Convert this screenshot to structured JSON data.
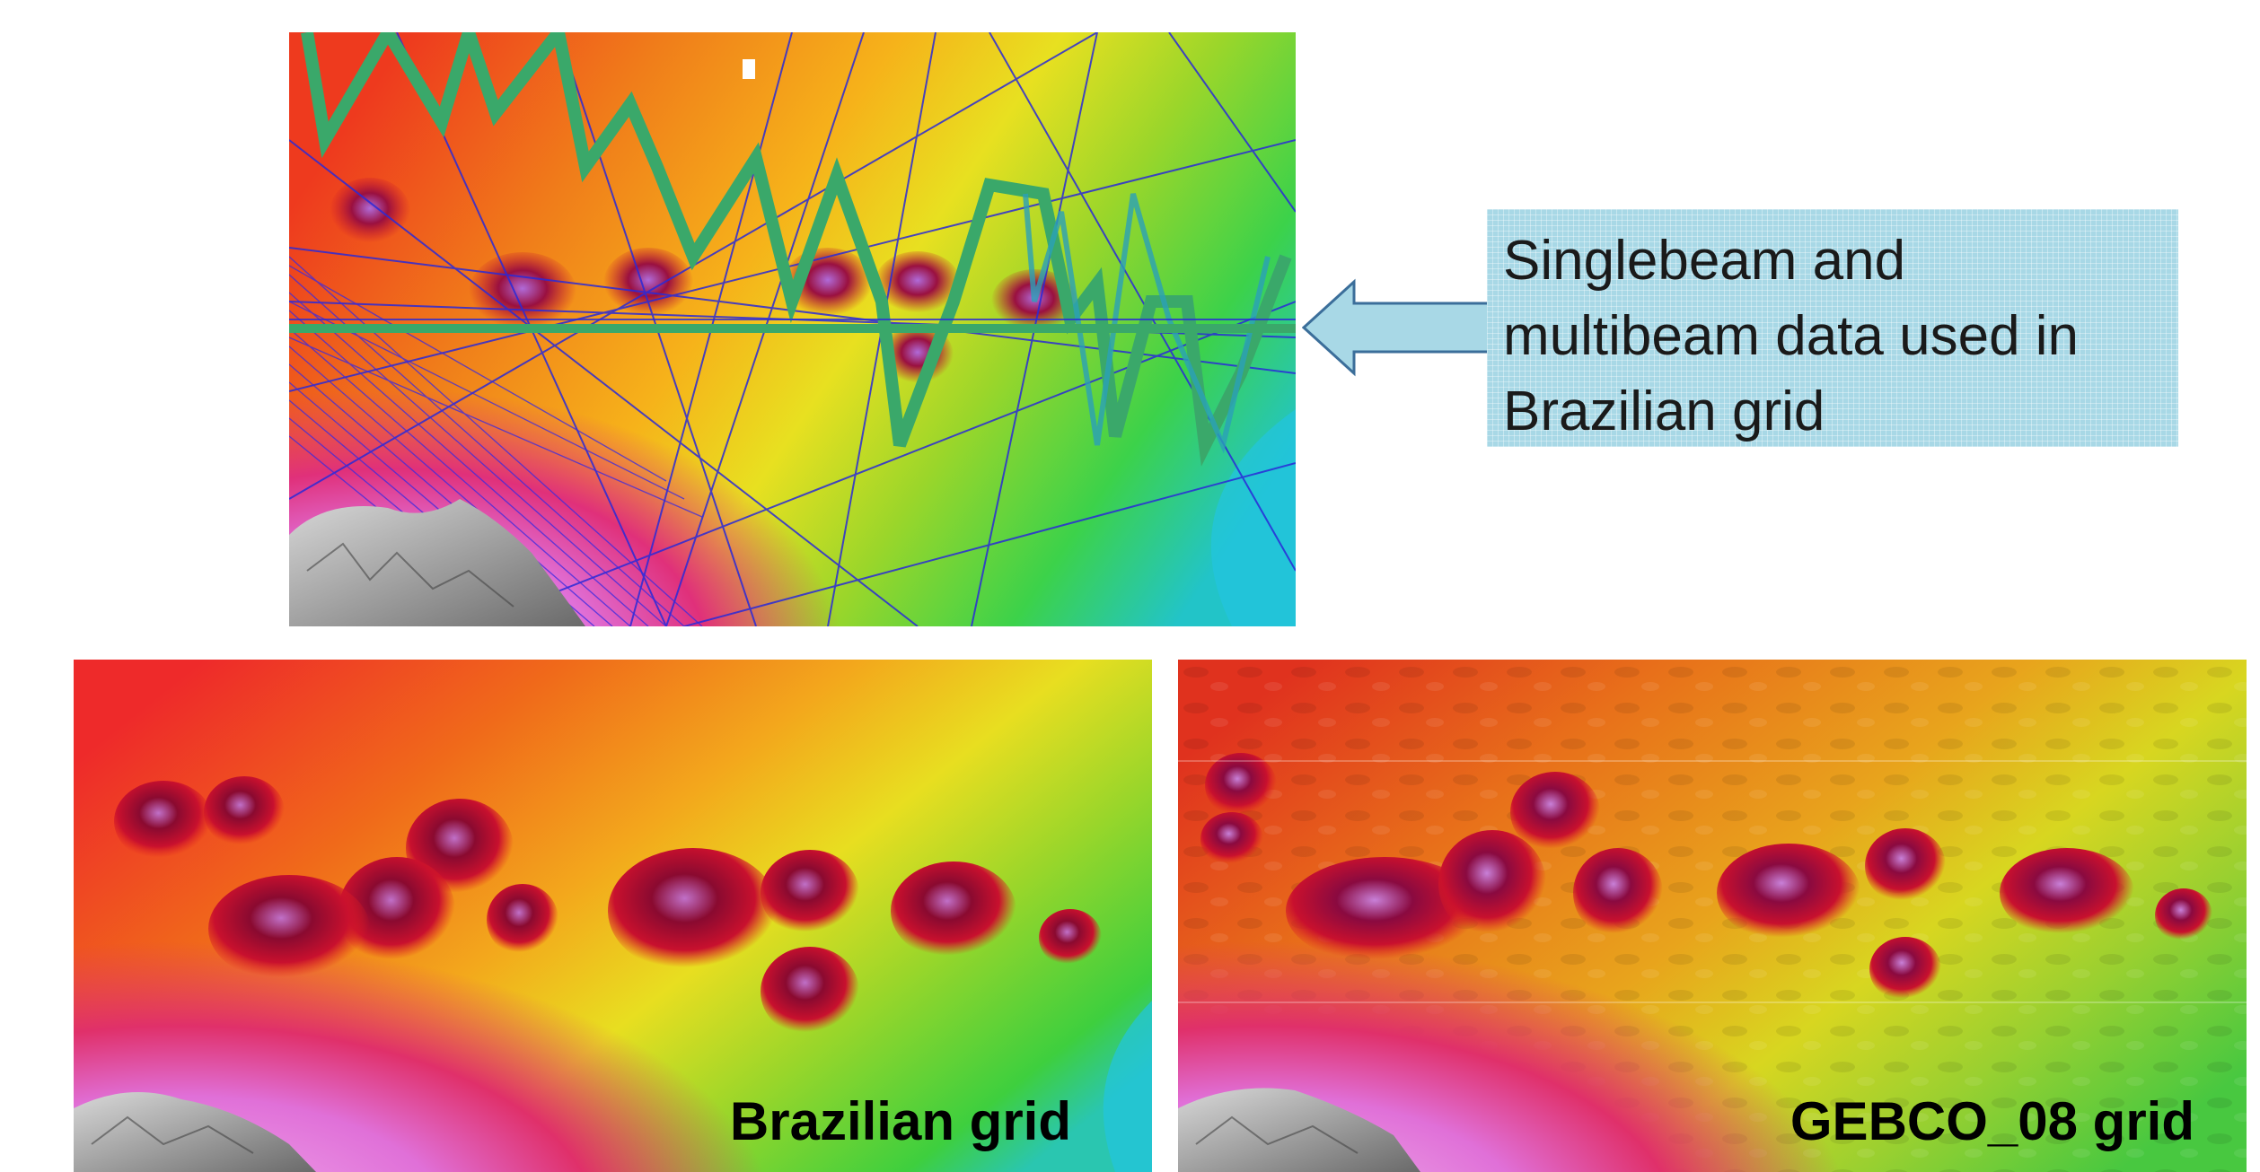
{
  "callout": {
    "text": "Singlebeam and\nmultibeam data used in\nBrazilian grid",
    "arrow_icon": "left-arrow-icon",
    "fill_color": "#a8d8e6"
  },
  "panels": {
    "top": {
      "content": "bathymetry map with singlebeam and multibeam track lines"
    },
    "bottom_left": {
      "caption": "Brazilian grid"
    },
    "bottom_right": {
      "caption": "GEBCO_08 grid"
    }
  },
  "colors": {
    "deep": "#21b9e6",
    "mid_deep": "#6bd12a",
    "mid": "#f2e21c",
    "shallow": "#f07d1a",
    "seamount": "#c8102e",
    "shelf": "#e070d8",
    "track_green": "#3aa86a",
    "track_blue": "#2a2ad8"
  }
}
